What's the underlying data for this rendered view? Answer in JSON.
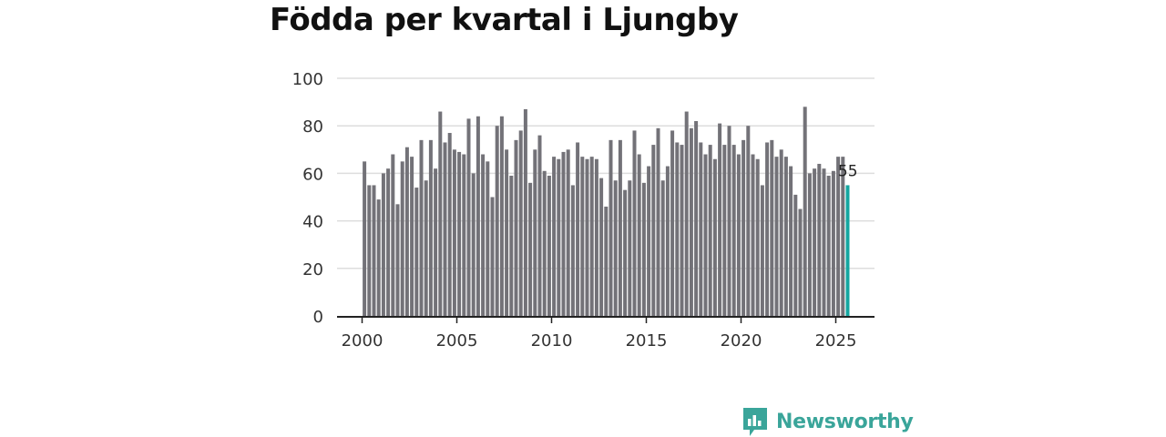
{
  "title": "Födda per kvartal i Ljungby",
  "brand": {
    "name": "Newsworthy",
    "icon": "bar-chart-logo-icon"
  },
  "colors": {
    "bars": "#737278",
    "highlight": "#15a6a0",
    "brand": "#3aa59a"
  },
  "chart_data": {
    "type": "bar",
    "title": "Födda per kvartal i Ljungby",
    "xlabel": "",
    "ylabel": "",
    "ylim": [
      0,
      100
    ],
    "yticks": [
      0,
      20,
      40,
      60,
      80,
      100
    ],
    "xticks": [
      2000,
      2005,
      2010,
      2015,
      2020,
      2025
    ],
    "grid": true,
    "x_start": "2000 Q1",
    "values": [
      65,
      55,
      55,
      49,
      60,
      62,
      68,
      47,
      65,
      71,
      67,
      54,
      74,
      57,
      74,
      62,
      86,
      73,
      77,
      70,
      69,
      68,
      83,
      60,
      84,
      68,
      65,
      50,
      80,
      84,
      70,
      59,
      74,
      78,
      87,
      56,
      70,
      76,
      61,
      59,
      67,
      66,
      69,
      70,
      55,
      73,
      67,
      66,
      67,
      66,
      58,
      46,
      74,
      57,
      74,
      53,
      57,
      78,
      68,
      56,
      63,
      72,
      79,
      57,
      63,
      78,
      73,
      72,
      86,
      79,
      82,
      73,
      68,
      72,
      66,
      81,
      72,
      80,
      72,
      68,
      74,
      80,
      68,
      66,
      55,
      73,
      74,
      67,
      70,
      67,
      63,
      51,
      45,
      88,
      60,
      62,
      64,
      62,
      59,
      61,
      67,
      67,
      55
    ],
    "highlight_last": true,
    "highlight_label": "55"
  }
}
